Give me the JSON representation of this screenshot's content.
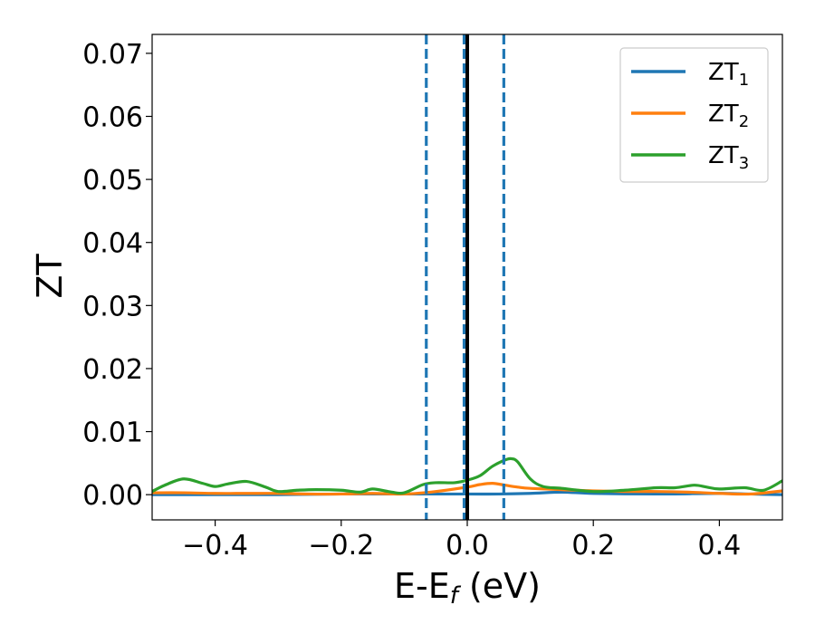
{
  "chart_data": {
    "type": "line",
    "title": "",
    "xlabel": {
      "main": "E-E",
      "sub": "f",
      "suffix": " (eV)"
    },
    "ylabel": "ZT",
    "xlim": [
      -0.5,
      0.5
    ],
    "ylim": [
      -0.004,
      0.073
    ],
    "xticks": [
      -0.4,
      -0.2,
      0.0,
      0.2,
      0.4
    ],
    "xtick_labels": [
      "−0.4",
      "−0.2",
      "0.0",
      "0.2",
      "0.4"
    ],
    "yticks": [
      0.0,
      0.01,
      0.02,
      0.03,
      0.04,
      0.05,
      0.06,
      0.07
    ],
    "ytick_labels": [
      "0.00",
      "0.01",
      "0.02",
      "0.03",
      "0.04",
      "0.05",
      "0.06",
      "0.07"
    ],
    "grid": false,
    "legend": {
      "placement": "top-right"
    },
    "vertical_lines": [
      {
        "x": 0.0,
        "style": "solid",
        "color": "#000000"
      },
      {
        "x": -0.065,
        "style": "dashed",
        "color": "#1f77b4"
      },
      {
        "x": -0.005,
        "style": "dashed",
        "color": "#1f77b4"
      },
      {
        "x": 0.058,
        "style": "dashed",
        "color": "#1f77b4"
      }
    ],
    "series": [
      {
        "name": "ZT",
        "sub": "1",
        "color": "#1f77b4",
        "x": [
          -0.5,
          -0.4,
          -0.3,
          -0.2,
          -0.1,
          0.0,
          0.05,
          0.1,
          0.15,
          0.2,
          0.3,
          0.4,
          0.45,
          0.5
        ],
        "y": [
          0.0,
          0.0,
          0.0,
          0.0001,
          0.0001,
          0.0001,
          0.0001,
          0.0002,
          0.0004,
          0.0002,
          0.0001,
          0.0002,
          0.0001,
          0.0
        ]
      },
      {
        "name": "ZT",
        "sub": "2",
        "color": "#ff7f0e",
        "x": [
          -0.5,
          -0.45,
          -0.4,
          -0.35,
          -0.3,
          -0.25,
          -0.2,
          -0.15,
          -0.1,
          -0.05,
          0.0,
          0.02,
          0.04,
          0.06,
          0.08,
          0.1,
          0.15,
          0.2,
          0.25,
          0.3,
          0.35,
          0.4,
          0.45,
          0.5
        ],
        "y": [
          0.0003,
          0.0003,
          0.0002,
          0.0002,
          0.0002,
          0.0001,
          0.0001,
          0.0002,
          0.0001,
          0.0005,
          0.0012,
          0.0016,
          0.0018,
          0.0015,
          0.0012,
          0.001,
          0.0008,
          0.0006,
          0.0005,
          0.0005,
          0.0004,
          0.0002,
          0.0001,
          0.0006
        ]
      },
      {
        "name": "ZT",
        "sub": "3",
        "color": "#2ca02c",
        "x": [
          -0.5,
          -0.48,
          -0.45,
          -0.42,
          -0.4,
          -0.38,
          -0.35,
          -0.32,
          -0.3,
          -0.27,
          -0.24,
          -0.2,
          -0.17,
          -0.15,
          -0.12,
          -0.1,
          -0.07,
          -0.05,
          -0.02,
          0.0,
          0.02,
          0.04,
          0.06,
          0.07,
          0.08,
          0.1,
          0.12,
          0.15,
          0.2,
          0.25,
          0.3,
          0.33,
          0.36,
          0.38,
          0.4,
          0.44,
          0.47,
          0.5
        ],
        "y": [
          0.0005,
          0.0015,
          0.0025,
          0.0018,
          0.0013,
          0.0017,
          0.0021,
          0.0012,
          0.0005,
          0.0007,
          0.0008,
          0.0007,
          0.0004,
          0.0009,
          0.0004,
          0.0003,
          0.0016,
          0.0019,
          0.0019,
          0.0023,
          0.003,
          0.0045,
          0.0055,
          0.0057,
          0.0052,
          0.0025,
          0.0013,
          0.001,
          0.0005,
          0.0007,
          0.0011,
          0.0011,
          0.0015,
          0.0012,
          0.0009,
          0.0011,
          0.0007,
          0.0022
        ]
      }
    ]
  }
}
